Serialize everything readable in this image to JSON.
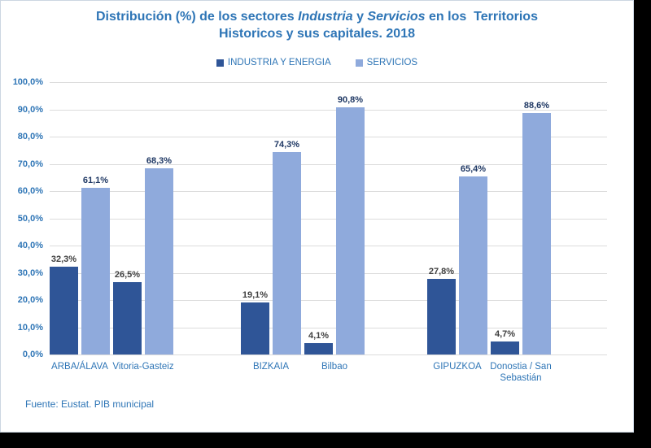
{
  "title": {
    "line1_segments": [
      {
        "text": "Distribución (%) de los sectores ",
        "italic": false
      },
      {
        "text": "Industria",
        "italic": true
      },
      {
        "text": " y ",
        "italic": false
      },
      {
        "text": "Servicios",
        "italic": true
      },
      {
        "text": " en los  Territorios",
        "italic": false
      }
    ],
    "line2": "Historicos y sus capitales. 2018",
    "color": "#2E75B6"
  },
  "legend": {
    "items": [
      {
        "label": "INDUSTRIA Y ENERGIA",
        "color": "#2F5597"
      },
      {
        "label": "SERVICIOS",
        "color": "#8FAADC"
      }
    ]
  },
  "chart_data": {
    "type": "bar",
    "title": "Distribución (%) de los sectores Industria y Servicios en los  Territorios Historicos y sus capitales. 2018",
    "categories": [
      "ARBA/ÁLAVA",
      "Vitoria-Gasteiz",
      "BIZKAIA",
      "Bilbao",
      "GIPUZKOA",
      "Donostia / San Sebastián"
    ],
    "category_groups": [
      [
        "ARBA/ÁLAVA",
        "Vitoria-Gasteiz"
      ],
      [
        "BIZKAIA",
        "Bilbao"
      ],
      [
        "GIPUZKOA",
        "Donostia / San Sebastián"
      ]
    ],
    "series": [
      {
        "name": "INDUSTRIA Y ENERGIA",
        "color": "#2F5597",
        "label_color": "#404040",
        "values": [
          32.3,
          26.5,
          19.1,
          4.1,
          27.8,
          4.7
        ],
        "labels": [
          "32,3%",
          "26,5%",
          "19,1%",
          "4,1%",
          "27,8%",
          "4,7%"
        ]
      },
      {
        "name": "SERVICIOS",
        "color": "#8FAADC",
        "label_color": "#1F3864",
        "values": [
          61.1,
          68.3,
          74.3,
          90.8,
          65.4,
          88.6
        ],
        "labels": [
          "61,1%",
          "68,3%",
          "74,3%",
          "90,8%",
          "65,4%",
          "88,6%"
        ]
      }
    ],
    "ylabel": "",
    "xlabel": "",
    "ylim": [
      0,
      100
    ],
    "y_ticks": [
      "100,0%",
      "90,0%",
      "80,0%",
      "70,0%",
      "60,0%",
      "50,0%",
      "40,0%",
      "30,0%",
      "20,0%",
      "10,0%",
      "0,0%"
    ],
    "grid": true,
    "legend_position": "top",
    "axis_text_color": "#2E75B6",
    "gridline_color": "#DCDCDC"
  },
  "footer": {
    "source": "Fuente: Eustat. PIB municipal"
  }
}
